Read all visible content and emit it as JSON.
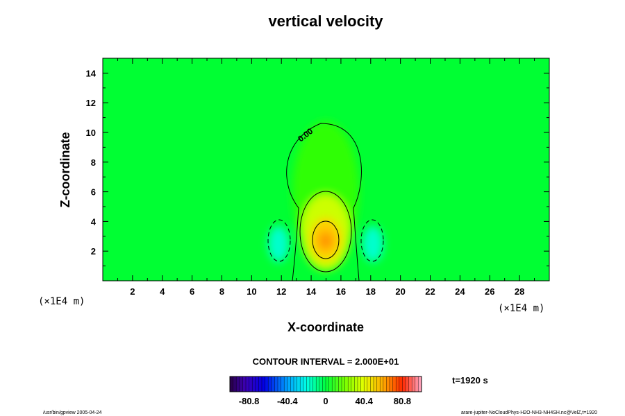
{
  "chart_data": {
    "type": "heatmap",
    "title": "vertical velocity",
    "xlabel": "X-coordinate",
    "ylabel": "Z-coordinate",
    "x_units": "(×1E4 m)",
    "y_units": "(×1E4 m)",
    "xlim": [
      0,
      30
    ],
    "ylim": [
      0,
      15
    ],
    "xticks": [
      "2",
      "4",
      "6",
      "8",
      "10",
      "12",
      "14",
      "16",
      "18",
      "20",
      "22",
      "24",
      "26",
      "28"
    ],
    "yticks": [
      "2",
      "4",
      "6",
      "8",
      "10",
      "12",
      "14"
    ],
    "field_features": [
      {
        "kind": "updraft-maximum",
        "x": 15,
        "z": 2.7,
        "value": 90
      },
      {
        "kind": "downdraft-minimum",
        "x": 11.9,
        "z": 2.4,
        "value": -35
      },
      {
        "kind": "downdraft-minimum",
        "x": 18.1,
        "z": 2.4,
        "value": -35
      }
    ],
    "contours": [
      {
        "level": 0,
        "style": "solid",
        "label": "0.00",
        "shape": "cell envelope",
        "x_range": [
          12.6,
          17.4
        ],
        "z_top": 10.6
      },
      {
        "level": 20,
        "style": "solid",
        "shape": "closed",
        "x_range": [
          13.3,
          16.7
        ],
        "z_range": [
          0.5,
          6.0
        ]
      },
      {
        "level": 40,
        "style": "solid",
        "shape": "closed",
        "x_range": [
          14.1,
          15.9
        ],
        "z_range": [
          1.5,
          3.9
        ]
      },
      {
        "level": -20,
        "style": "dashed",
        "shape": "closed",
        "x_range": [
          11.1,
          12.7
        ],
        "z_range": [
          1.3,
          4.2
        ]
      },
      {
        "level": -20,
        "style": "dashed",
        "shape": "closed",
        "x_range": [
          17.3,
          18.9
        ],
        "z_range": [
          1.3,
          4.2
        ]
      }
    ],
    "contour_interval_text": "CONTOUR INTERVAL = 2.000E+01",
    "colorbar": {
      "ticks": [
        "-80.8",
        "-40.4",
        "0",
        "40.4",
        "80.8"
      ],
      "tick_values": [
        -80.8,
        -40.4,
        0,
        40.4,
        80.8
      ],
      "range": [
        -101,
        101
      ],
      "bands": 60,
      "colormap": "rainbow (purple→blue→cyan→green→yellow→red→pink)"
    },
    "grid": false,
    "legend": "colorbar bottom-center"
  },
  "time_label": "t=1920 s",
  "footer": {
    "left": "/usr/bin/gpview 2005-04-24",
    "right": "arare-jupiter-NoCloudPhys-H2O-NH3-NH4SH.nc@VelZ,t=1920"
  },
  "colors": {
    "background_green": "#00ff33",
    "axis": "#000000"
  }
}
